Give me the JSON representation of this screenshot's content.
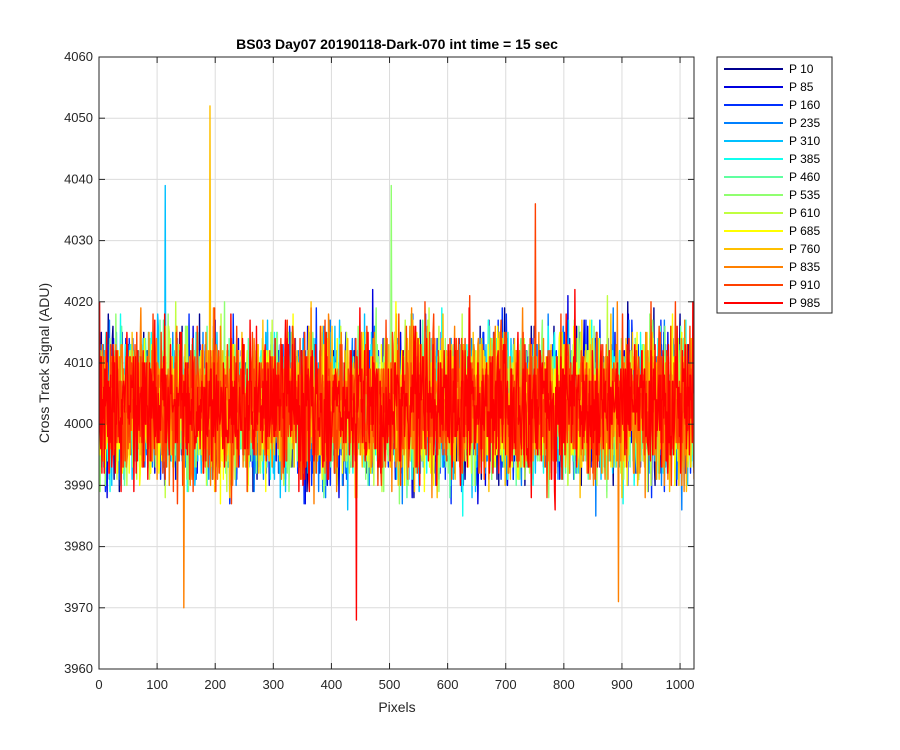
{
  "chart_data": {
    "type": "line",
    "title": "BS03 Day07 20190118-Dark-070 int time = 15 sec",
    "xlabel": "Pixels",
    "ylabel": "Cross Track Signal (ADU)",
    "xlim": [
      0,
      1024
    ],
    "ylim": [
      3960,
      4060
    ],
    "xticks": [
      0,
      100,
      200,
      300,
      400,
      500,
      600,
      700,
      800,
      900,
      1000
    ],
    "yticks": [
      3960,
      3970,
      3980,
      3990,
      4000,
      4010,
      4020,
      4030,
      4040,
      4050,
      4060
    ],
    "grid": true,
    "legend_position": "outside-top-right",
    "n_points_per_series": 1024,
    "series": [
      {
        "name": "P 10",
        "color": "#00008F",
        "mean": 4003,
        "spread": 7.5
      },
      {
        "name": "P 85",
        "color": "#0000DF",
        "mean": 4003,
        "spread": 7.5
      },
      {
        "name": "P 160",
        "color": "#0030FF",
        "mean": 4003,
        "spread": 7.5
      },
      {
        "name": "P 235",
        "color": "#0080FF",
        "mean": 4003,
        "spread": 7.5
      },
      {
        "name": "P 310",
        "color": "#00C0FF",
        "mean": 4003,
        "spread": 7.5
      },
      {
        "name": "P 385",
        "color": "#10FFEF",
        "mean": 4003,
        "spread": 7.5
      },
      {
        "name": "P 460",
        "color": "#60FFA0",
        "mean": 4003,
        "spread": 7.5
      },
      {
        "name": "P 535",
        "color": "#90FF70",
        "mean": 4003,
        "spread": 7.5
      },
      {
        "name": "P 610",
        "color": "#C0FF40",
        "mean": 4003,
        "spread": 7.5
      },
      {
        "name": "P 685",
        "color": "#FFFF00",
        "mean": 4003,
        "spread": 7.5
      },
      {
        "name": "P 760",
        "color": "#FFC000",
        "mean": 4003,
        "spread": 7.5
      },
      {
        "name": "P 835",
        "color": "#FF8000",
        "mean": 4003,
        "spread": 7.5
      },
      {
        "name": "P 910",
        "color": "#FF4000",
        "mean": 4003,
        "spread": 7.5
      },
      {
        "name": "P 985",
        "color": "#FF0000",
        "mean": 4003,
        "spread": 7.5
      }
    ],
    "annotated_extremes": [
      {
        "series": "P 760",
        "x": 190,
        "y": 4052
      },
      {
        "series": "P 310",
        "x": 113,
        "y": 4039
      },
      {
        "series": "P 535",
        "x": 502,
        "y": 4039
      },
      {
        "series": "P 910",
        "x": 750,
        "y": 4036
      },
      {
        "series": "P 985",
        "x": 442,
        "y": 3968
      },
      {
        "series": "P 835",
        "x": 145,
        "y": 3970
      },
      {
        "series": "P 835",
        "x": 893,
        "y": 3971
      }
    ]
  }
}
